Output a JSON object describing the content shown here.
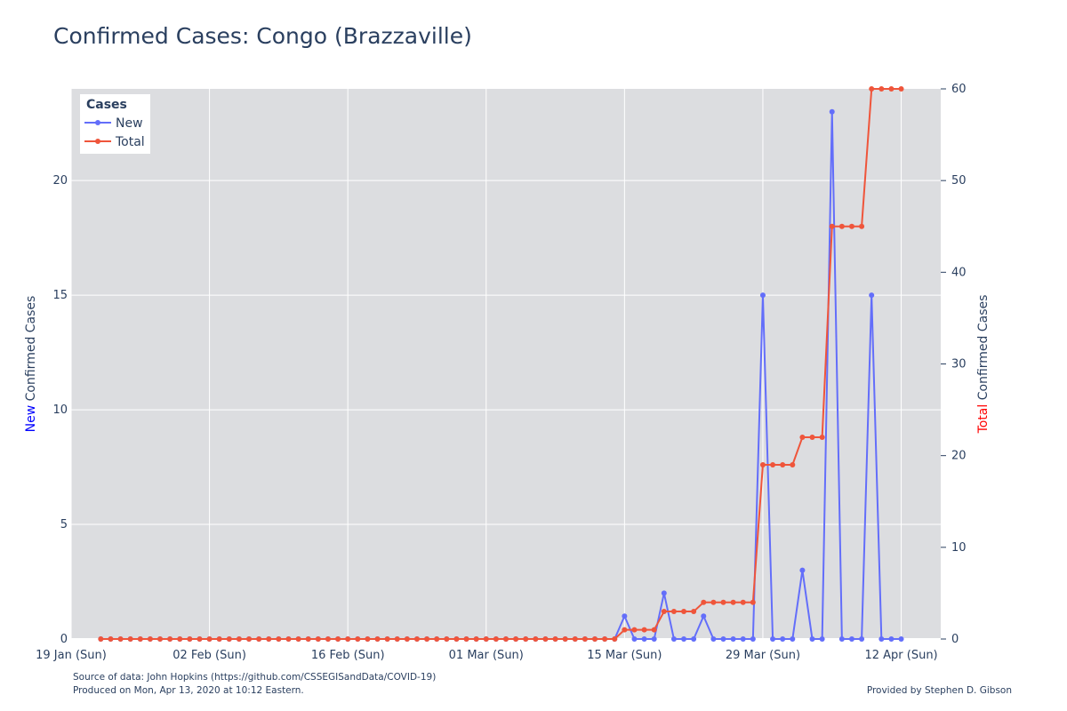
{
  "title": "Confirmed Cases: Congo (Brazzaville)",
  "footer": {
    "source": "Source of data: John Hopkins (https://github.com/CSSEGISandData/COVID-19)",
    "produced": "Produced on Mon, Apr 13, 2020 at 10:12 Eastern.",
    "credit": "Provided by Stephen D. Gibson"
  },
  "chart_data": {
    "type": "line",
    "title": "Confirmed Cases: Congo (Brazzaville)",
    "plot_bgcolor": "#dcdde0",
    "grid": true,
    "x_start_date": "2020-01-22",
    "x_end_date": "2020-04-12",
    "xlim": [
      "2020-01-19",
      "2020-04-16"
    ],
    "xticks": [
      "2020-01-19",
      "2020-02-02",
      "2020-02-16",
      "2020-03-01",
      "2020-03-15",
      "2020-03-29",
      "2020-04-12"
    ],
    "xtick_labels": [
      "19 Jan (Sun)",
      "02 Feb (Sun)",
      "16 Feb (Sun)",
      "01 Mar (Sun)",
      "15 Mar (Sun)",
      "29 Mar (Sun)",
      "12 Apr (Sun)"
    ],
    "y_left": {
      "label_prefix": "New",
      "label_suffix": " Confirmed Cases",
      "prefix_color": "#0000ff",
      "ylim": [
        0,
        24
      ],
      "ticks": [
        0,
        5,
        10,
        15,
        20
      ]
    },
    "y_right": {
      "label_prefix": "Total",
      "label_suffix": " Confirmed Cases",
      "prefix_color": "#ff0000",
      "ylim": [
        0,
        60
      ],
      "ticks": [
        0,
        10,
        20,
        30,
        40,
        50,
        60
      ]
    },
    "legend": {
      "title": "Cases",
      "position": "top-left"
    },
    "series": [
      {
        "name": "New",
        "axis": "left",
        "color": "#636efa",
        "values": [
          0,
          0,
          0,
          0,
          0,
          0,
          0,
          0,
          0,
          0,
          0,
          0,
          0,
          0,
          0,
          0,
          0,
          0,
          0,
          0,
          0,
          0,
          0,
          0,
          0,
          0,
          0,
          0,
          0,
          0,
          0,
          0,
          0,
          0,
          0,
          0,
          0,
          0,
          0,
          0,
          0,
          0,
          0,
          0,
          0,
          0,
          0,
          0,
          0,
          0,
          0,
          0,
          0,
          1,
          0,
          0,
          0,
          2,
          0,
          0,
          0,
          1,
          0,
          0,
          0,
          0,
          0,
          15,
          0,
          0,
          0,
          3,
          0,
          0,
          23,
          0,
          0,
          0,
          15,
          0,
          0,
          0
        ]
      },
      {
        "name": "Total",
        "axis": "right",
        "color": "#ef553b",
        "values": [
          0,
          0,
          0,
          0,
          0,
          0,
          0,
          0,
          0,
          0,
          0,
          0,
          0,
          0,
          0,
          0,
          0,
          0,
          0,
          0,
          0,
          0,
          0,
          0,
          0,
          0,
          0,
          0,
          0,
          0,
          0,
          0,
          0,
          0,
          0,
          0,
          0,
          0,
          0,
          0,
          0,
          0,
          0,
          0,
          0,
          0,
          0,
          0,
          0,
          0,
          0,
          0,
          0,
          1,
          1,
          1,
          1,
          3,
          3,
          3,
          3,
          4,
          4,
          4,
          4,
          4,
          4,
          19,
          19,
          19,
          19,
          22,
          22,
          22,
          45,
          45,
          45,
          45,
          60,
          60,
          60,
          60
        ]
      }
    ]
  }
}
